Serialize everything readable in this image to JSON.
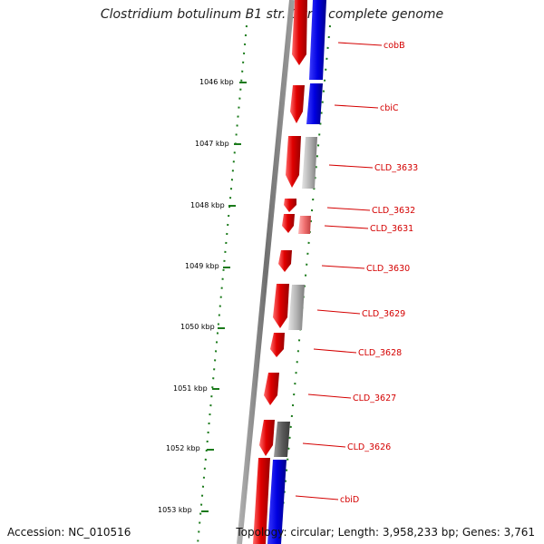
{
  "title": "Clostridium botulinum B1 str. Okra, complete genome",
  "accession": "Accession: NC_010516",
  "topology": "Topology: circular; Length: 3,958,233 bp; Genes: 3,761",
  "colors": {
    "backbone": "#808080",
    "forward_strand": "#e00000",
    "reverse_cds": "#0000e0",
    "other_feature": "#a8a8a8",
    "dark_feature": "#606060",
    "light_feature": "#f07070",
    "scale": "#1a7a1a",
    "label": "#d40000"
  },
  "scale_ticks": [
    {
      "label": "1046 kbp"
    },
    {
      "label": "1047 kbp"
    },
    {
      "label": "1048 kbp"
    },
    {
      "label": "1049 kbp"
    },
    {
      "label": "1050 kbp"
    },
    {
      "label": "1051 kbp"
    },
    {
      "label": "1052 kbp"
    },
    {
      "label": "1053 kbp"
    }
  ],
  "genes": [
    {
      "label": "cobB"
    },
    {
      "label": "cbiC"
    },
    {
      "label": "CLD_3633"
    },
    {
      "label": "CLD_3632"
    },
    {
      "label": "CLD_3631"
    },
    {
      "label": "CLD_3630"
    },
    {
      "label": "CLD_3629"
    },
    {
      "label": "CLD_3628"
    },
    {
      "label": "CLD_3627"
    },
    {
      "label": "CLD_3626"
    },
    {
      "label": "cbiD"
    }
  ]
}
